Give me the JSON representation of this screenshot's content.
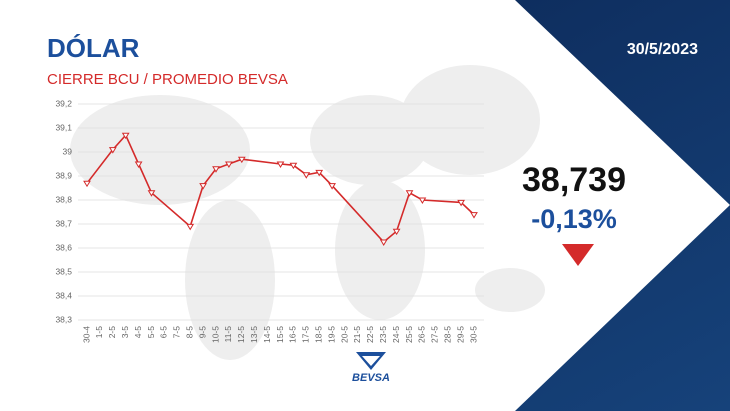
{
  "chart_data": {
    "type": "line",
    "title": "DÓLAR",
    "subtitle": "CIERRE BCU / PROMEDIO BEVSA",
    "annotations": [
      "30/5/2023",
      "38,739",
      "-0,13%"
    ],
    "brand": "BEVSA",
    "categories": [
      "30-4",
      "1-5",
      "2-5",
      "3-5",
      "4-5",
      "5-5",
      "6-5",
      "7-5",
      "8-5",
      "9-5",
      "10-5",
      "11-5",
      "12-5",
      "13-5",
      "14-5",
      "15-5",
      "16-5",
      "17-5",
      "18-5",
      "19-5",
      "20-5",
      "21-5",
      "22-5",
      "23-5",
      "24-5",
      "25-5",
      "26-5",
      "27-5",
      "28-5",
      "29-5",
      "30-5"
    ],
    "series": [
      {
        "name": "Dólar",
        "color": "#d42a2a",
        "values": [
          38.87,
          null,
          39.01,
          39.07,
          38.95,
          38.83,
          null,
          null,
          38.69,
          38.86,
          38.93,
          38.95,
          38.97,
          null,
          null,
          38.95,
          38.945,
          38.905,
          38.915,
          38.86,
          null,
          null,
          null,
          38.625,
          38.67,
          38.83,
          38.8,
          null,
          null,
          38.79,
          38.739
        ]
      }
    ],
    "connect_gaps": true,
    "ylim": [
      38.3,
      39.2
    ],
    "yticks": [
      {
        "value": 38.3,
        "label": "38,3"
      },
      {
        "value": 38.4,
        "label": "38,4"
      },
      {
        "value": 38.5,
        "label": "38,5"
      },
      {
        "value": 38.6,
        "label": "38,6"
      },
      {
        "value": 38.7,
        "label": "38,7"
      },
      {
        "value": 38.8,
        "label": "38,8"
      },
      {
        "value": 38.9,
        "label": "38,9"
      },
      {
        "value": 39,
        "label": "39"
      },
      {
        "value": 39.1,
        "label": "39,1"
      },
      {
        "value": 39.2,
        "label": "39,2"
      }
    ],
    "grid": true
  }
}
